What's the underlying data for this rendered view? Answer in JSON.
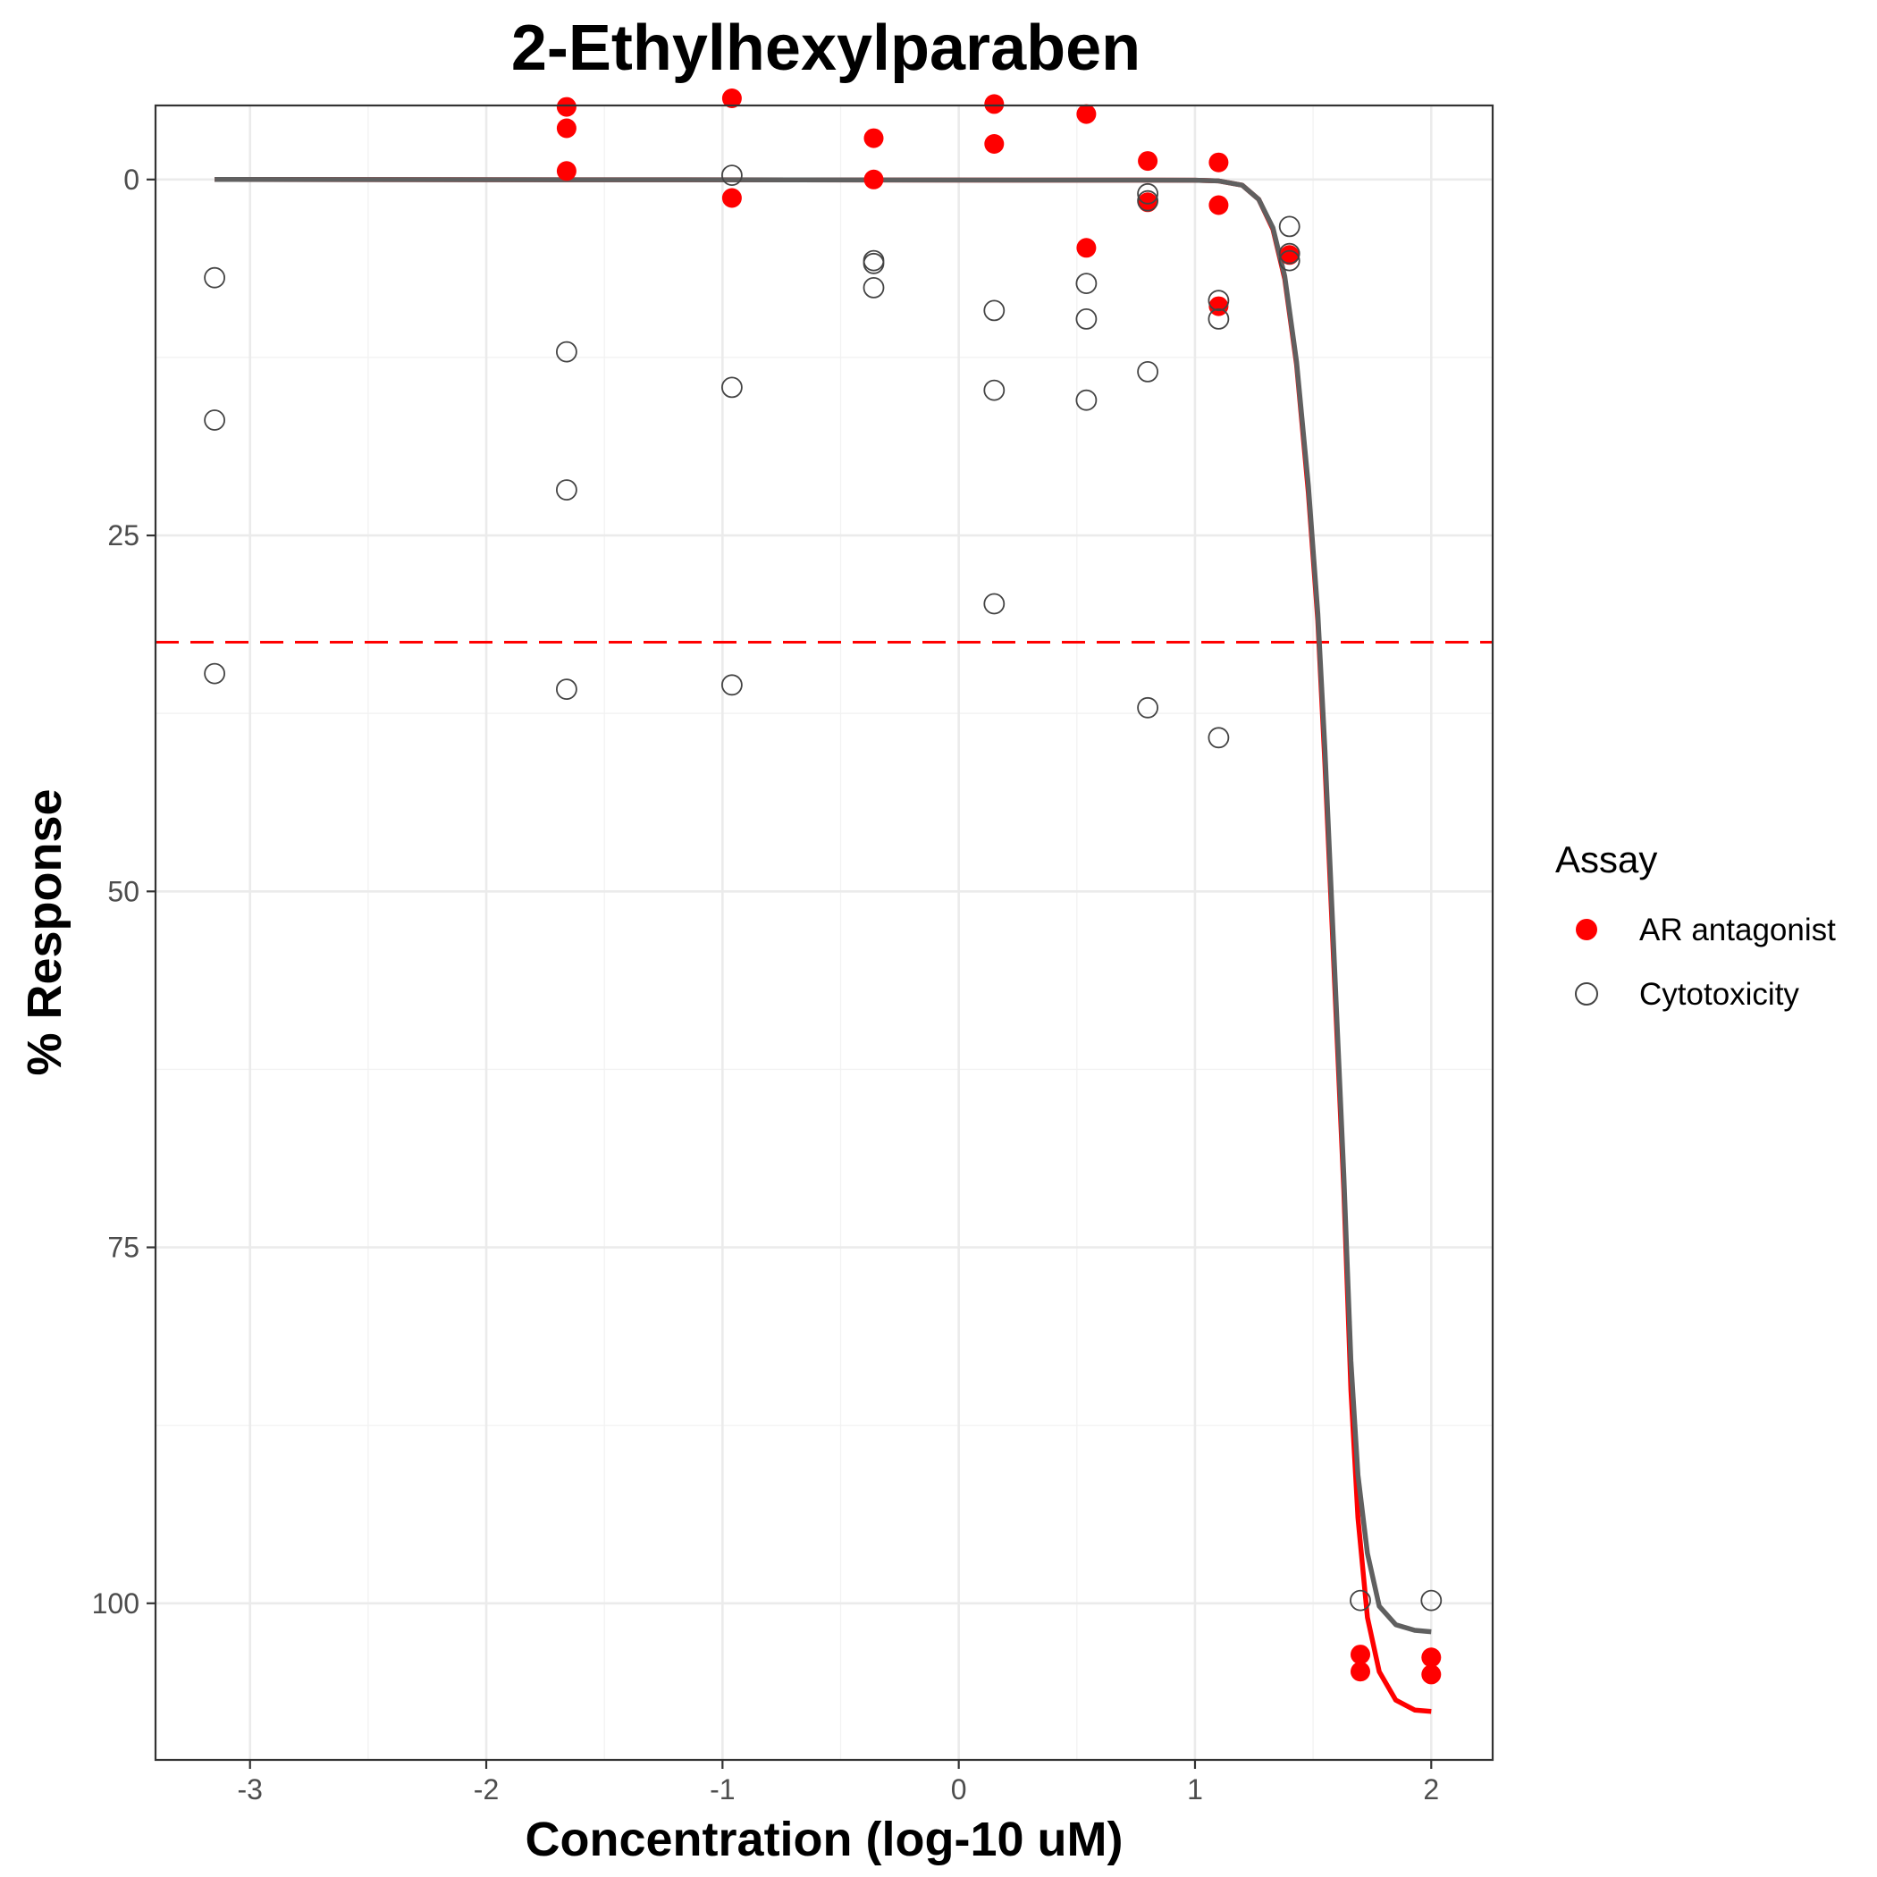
{
  "chart_data": {
    "type": "scatter",
    "title": "2-Ethylhexylparaben",
    "xlabel": "Concentration (log-10 uM)",
    "ylabel": "% Response",
    "xlim": [
      -3.4,
      2.26
    ],
    "ylim": [
      111,
      -5.2
    ],
    "y_reversed": true,
    "x_ticks": [
      -3,
      -2,
      -1,
      0,
      1,
      2
    ],
    "x_tick_labels": [
      "-3",
      "-2",
      "-1",
      "0",
      "1",
      "2"
    ],
    "y_ticks": [
      0,
      25,
      50,
      75,
      100
    ],
    "y_tick_labels": [
      "0",
      "25",
      "50",
      "75",
      "100"
    ],
    "grid": true,
    "legend": {
      "title": "Assay",
      "placement": "right",
      "entries": [
        "AR antagonist",
        "Cytotoxicity"
      ]
    },
    "threshold_line": {
      "y": 32.5,
      "color": "#ff0000",
      "style": "dashed"
    },
    "series": [
      {
        "name": "AR antagonist",
        "marker": "filled-circle",
        "color": "#ff0000",
        "points": [
          {
            "x": -1.66,
            "y": -5.1
          },
          {
            "x": -1.66,
            "y": -3.6
          },
          {
            "x": -1.66,
            "y": -0.6
          },
          {
            "x": -0.96,
            "y": -5.7
          },
          {
            "x": -0.96,
            "y": 1.3
          },
          {
            "x": -0.36,
            "y": -2.9
          },
          {
            "x": -0.36,
            "y": 0.0
          },
          {
            "x": 0.15,
            "y": -5.3
          },
          {
            "x": 0.15,
            "y": -2.5
          },
          {
            "x": 0.54,
            "y": -4.6
          },
          {
            "x": 0.54,
            "y": 4.8
          },
          {
            "x": 0.8,
            "y": -1.3
          },
          {
            "x": 0.8,
            "y": 1.6
          },
          {
            "x": 1.1,
            "y": -1.2
          },
          {
            "x": 1.1,
            "y": 1.8
          },
          {
            "x": 1.1,
            "y": 8.9
          },
          {
            "x": 1.4,
            "y": 5.3
          },
          {
            "x": 1.7,
            "y": 103.6
          },
          {
            "x": 1.7,
            "y": 104.8
          },
          {
            "x": 2.0,
            "y": 103.8
          },
          {
            "x": 2.0,
            "y": 105.0
          }
        ],
        "curve": [
          {
            "x": -3.15,
            "y": 0
          },
          {
            "x": 1.0,
            "y": 0.05
          },
          {
            "x": 1.1,
            "y": 0.1
          },
          {
            "x": 1.2,
            "y": 0.4
          },
          {
            "x": 1.27,
            "y": 1.4
          },
          {
            "x": 1.33,
            "y": 3.5
          },
          {
            "x": 1.38,
            "y": 7.0
          },
          {
            "x": 1.43,
            "y": 13.0
          },
          {
            "x": 1.48,
            "y": 22.0
          },
          {
            "x": 1.52,
            "y": 31.0
          },
          {
            "x": 1.55,
            "y": 41.0
          },
          {
            "x": 1.59,
            "y": 56.0
          },
          {
            "x": 1.63,
            "y": 71.0
          },
          {
            "x": 1.66,
            "y": 85.0
          },
          {
            "x": 1.69,
            "y": 94.0
          },
          {
            "x": 1.73,
            "y": 101.0
          },
          {
            "x": 1.78,
            "y": 104.8
          },
          {
            "x": 1.85,
            "y": 106.8
          },
          {
            "x": 1.93,
            "y": 107.5
          },
          {
            "x": 2.0,
            "y": 107.6
          }
        ]
      },
      {
        "name": "Cytotoxicity",
        "marker": "open-circle",
        "color": "#444444",
        "points": [
          {
            "x": -3.15,
            "y": 6.9
          },
          {
            "x": -3.15,
            "y": 16.9
          },
          {
            "x": -3.15,
            "y": 34.7
          },
          {
            "x": -1.66,
            "y": 12.1
          },
          {
            "x": -1.66,
            "y": 21.8
          },
          {
            "x": -1.66,
            "y": 35.8
          },
          {
            "x": -0.96,
            "y": -0.3
          },
          {
            "x": -0.96,
            "y": 14.6
          },
          {
            "x": -0.96,
            "y": 35.5
          },
          {
            "x": -0.36,
            "y": 5.7
          },
          {
            "x": -0.36,
            "y": 5.9
          },
          {
            "x": -0.36,
            "y": 7.6
          },
          {
            "x": 0.15,
            "y": 9.2
          },
          {
            "x": 0.15,
            "y": 14.8
          },
          {
            "x": 0.15,
            "y": 29.8
          },
          {
            "x": 0.54,
            "y": 7.3
          },
          {
            "x": 0.54,
            "y": 9.8
          },
          {
            "x": 0.54,
            "y": 15.5
          },
          {
            "x": 0.8,
            "y": 1.0
          },
          {
            "x": 0.8,
            "y": 1.5
          },
          {
            "x": 0.8,
            "y": 13.5
          },
          {
            "x": 0.8,
            "y": 37.1
          },
          {
            "x": 1.1,
            "y": 8.5
          },
          {
            "x": 1.1,
            "y": 9.8
          },
          {
            "x": 1.1,
            "y": 39.2
          },
          {
            "x": 1.4,
            "y": 3.3
          },
          {
            "x": 1.4,
            "y": 5.2
          },
          {
            "x": 1.4,
            "y": 5.7
          },
          {
            "x": 1.7,
            "y": 99.8
          },
          {
            "x": 2.0,
            "y": 99.8
          }
        ],
        "curve": [
          {
            "x": -3.15,
            "y": 0
          },
          {
            "x": 1.0,
            "y": 0.05
          },
          {
            "x": 1.1,
            "y": 0.1
          },
          {
            "x": 1.2,
            "y": 0.4
          },
          {
            "x": 1.27,
            "y": 1.4
          },
          {
            "x": 1.33,
            "y": 3.4
          },
          {
            "x": 1.38,
            "y": 6.8
          },
          {
            "x": 1.43,
            "y": 12.8
          },
          {
            "x": 1.48,
            "y": 21.5
          },
          {
            "x": 1.52,
            "y": 30.5
          },
          {
            "x": 1.55,
            "y": 40.0
          },
          {
            "x": 1.59,
            "y": 55.0
          },
          {
            "x": 1.63,
            "y": 70.0
          },
          {
            "x": 1.66,
            "y": 83.0
          },
          {
            "x": 1.69,
            "y": 91.0
          },
          {
            "x": 1.73,
            "y": 96.5
          },
          {
            "x": 1.78,
            "y": 100.2
          },
          {
            "x": 1.85,
            "y": 101.5
          },
          {
            "x": 1.93,
            "y": 101.9
          },
          {
            "x": 2.0,
            "y": 102.0
          }
        ]
      }
    ]
  }
}
